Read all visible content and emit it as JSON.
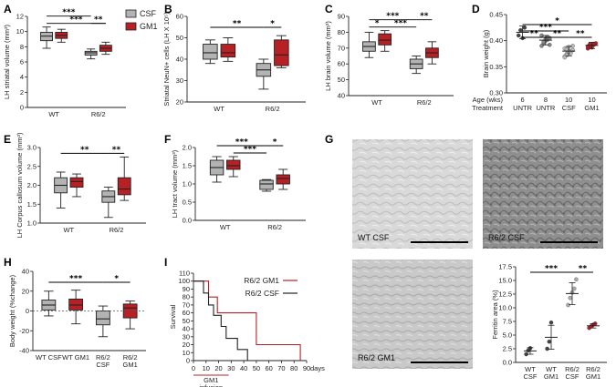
{
  "colors": {
    "csf": "#b3b3b3",
    "gm1": "#b72025",
    "axis": "#222222"
  },
  "legend": {
    "items": [
      {
        "label": "CSF",
        "color": "#b3b3b3"
      },
      {
        "label": "GM1",
        "color": "#b72025"
      }
    ]
  },
  "chart_data": [
    {
      "panel": "A",
      "type": "box",
      "ylabel": "LH striatal volume (mm³)",
      "ylim": [
        0,
        12
      ],
      "yticks": [
        0,
        2,
        4,
        6,
        8,
        10,
        12
      ],
      "groups": [
        "WT",
        "R6/2"
      ],
      "boxes": [
        {
          "group": 0,
          "series": "CSF",
          "min": 7.8,
          "q1": 8.8,
          "median": 9.4,
          "q3": 9.9,
          "max": 10.6
        },
        {
          "group": 0,
          "series": "GM1",
          "min": 8.6,
          "q1": 9.1,
          "median": 9.5,
          "q3": 9.9,
          "max": 10.3
        },
        {
          "group": 1,
          "series": "CSF",
          "min": 6.4,
          "q1": 6.9,
          "median": 7.2,
          "q3": 7.4,
          "max": 7.7
        },
        {
          "group": 1,
          "series": "GM1",
          "min": 7.0,
          "q1": 7.4,
          "median": 7.8,
          "q3": 8.2,
          "max": 8.6
        }
      ],
      "significance": [
        {
          "from": 0,
          "to": 2,
          "label": "***",
          "level": 1
        },
        {
          "from": 0,
          "to": 3,
          "label": "***",
          "level": 0
        },
        {
          "from": 2,
          "to": 3,
          "label": "**",
          "level": 0
        }
      ]
    },
    {
      "panel": "B",
      "type": "box",
      "ylabel": "Striatal NeuN+ cells (LH X 10⁵)",
      "ylim": [
        20,
        60
      ],
      "yticks": [
        20,
        30,
        40,
        50,
        60
      ],
      "groups": [
        "WT",
        "R6/2"
      ],
      "boxes": [
        {
          "group": 0,
          "series": "CSF",
          "min": 38,
          "q1": 40,
          "median": 43,
          "q3": 47,
          "max": 49
        },
        {
          "group": 0,
          "series": "GM1",
          "min": 39,
          "q1": 41,
          "median": 43,
          "q3": 47,
          "max": 50
        },
        {
          "group": 1,
          "series": "CSF",
          "min": 26,
          "q1": 32,
          "median": 35,
          "q3": 38,
          "max": 40
        },
        {
          "group": 1,
          "series": "GM1",
          "min": 36,
          "q1": 37,
          "median": 42,
          "q3": 49,
          "max": 51
        }
      ],
      "significance": [
        {
          "from": 0,
          "to": 2,
          "label": "**",
          "level": 0
        },
        {
          "from": 2,
          "to": 3,
          "label": "*",
          "level": 0
        }
      ]
    },
    {
      "panel": "C",
      "type": "box",
      "ylabel": "LH brain volume (mm³)",
      "ylim": [
        40,
        90
      ],
      "yticks": [
        40,
        50,
        60,
        70,
        80,
        90
      ],
      "groups": [
        "WT",
        "R6/2"
      ],
      "boxes": [
        {
          "group": 0,
          "series": "CSF",
          "min": 64,
          "q1": 68,
          "median": 71,
          "q3": 74,
          "max": 80
        },
        {
          "group": 0,
          "series": "GM1",
          "min": 68,
          "q1": 72,
          "median": 75,
          "q3": 79,
          "max": 81
        },
        {
          "group": 1,
          "series": "CSF",
          "min": 54,
          "q1": 57,
          "median": 60,
          "q3": 63,
          "max": 65
        },
        {
          "group": 1,
          "series": "GM1",
          "min": 60,
          "q1": 64,
          "median": 67,
          "q3": 70,
          "max": 74
        }
      ],
      "significance": [
        {
          "from": 0,
          "to": 2,
          "label": "***",
          "level": 1
        },
        {
          "from": 2,
          "to": 3,
          "label": "**",
          "level": 1
        },
        {
          "from": 0,
          "to": 1,
          "label": "*",
          "level": 0
        },
        {
          "from": 1,
          "to": 2,
          "label": "***",
          "level": 0
        }
      ]
    },
    {
      "panel": "D",
      "type": "dot",
      "ylabel": "Brain weight (g)",
      "ylim": [
        0.3,
        0.45
      ],
      "yticks": [
        "0.30",
        "0.35",
        "0.40",
        "0.45"
      ],
      "row_labels": [
        "Age (wks)",
        "Treatment"
      ],
      "categories": [
        {
          "age": "6",
          "treatment": "UNTR",
          "color": "#444444",
          "mean": 0.416,
          "sd": 0.012,
          "points": [
            0.41,
            0.42,
            0.405,
            0.425
          ]
        },
        {
          "age": "8",
          "treatment": "UNTR",
          "color": "#888888",
          "mean": 0.401,
          "sd": 0.009,
          "points": [
            0.39,
            0.395,
            0.4,
            0.402,
            0.405,
            0.41,
            0.398,
            0.403,
            0.407,
            0.392
          ]
        },
        {
          "age": "10",
          "treatment": "CSF",
          "color": "#bbbbbb",
          "mean": 0.38,
          "sd": 0.009,
          "points": [
            0.37,
            0.375,
            0.378,
            0.38,
            0.382,
            0.385,
            0.372,
            0.388,
            0.376,
            0.39,
            0.368,
            0.383,
            0.379
          ]
        },
        {
          "age": "10",
          "treatment": "GM1",
          "color": "#b72025",
          "mean": 0.391,
          "sd": 0.006,
          "points": [
            0.385,
            0.388,
            0.39,
            0.392,
            0.395,
            0.389,
            0.393,
            0.387,
            0.394
          ]
        }
      ],
      "significance": [
        {
          "from": 0,
          "to": 2,
          "label": "***",
          "level": 1
        },
        {
          "from": 0,
          "to": 3,
          "label": "*",
          "level": 2
        },
        {
          "from": 0,
          "to": 1,
          "label": "**",
          "level": 0
        },
        {
          "from": 1,
          "to": 2,
          "label": "**",
          "level": 0
        },
        {
          "from": 2,
          "to": 3,
          "label": "**",
          "level": 0
        }
      ]
    },
    {
      "panel": "E",
      "type": "box",
      "ylabel": "LH Corpus callosum volume (mm³)",
      "ylim": [
        1.0,
        3.0
      ],
      "yticks": [
        "1.0",
        "1.5",
        "2.0",
        "2.5",
        "3.0"
      ],
      "groups": [
        "WT",
        "R6/2"
      ],
      "boxes": [
        {
          "group": 0,
          "series": "CSF",
          "min": 1.4,
          "q1": 1.8,
          "median": 2.0,
          "q3": 2.2,
          "max": 2.35
        },
        {
          "group": 0,
          "series": "GM1",
          "min": 1.7,
          "q1": 1.95,
          "median": 2.1,
          "q3": 2.2,
          "max": 2.3
        },
        {
          "group": 1,
          "series": "CSF",
          "min": 1.15,
          "q1": 1.55,
          "median": 1.7,
          "q3": 1.85,
          "max": 1.95
        },
        {
          "group": 1,
          "series": "GM1",
          "min": 1.6,
          "q1": 1.75,
          "median": 1.9,
          "q3": 2.2,
          "max": 2.75
        }
      ],
      "significance": [
        {
          "from": 0,
          "to": 2,
          "label": "**",
          "level": 0
        },
        {
          "from": 2,
          "to": 3,
          "label": "**",
          "level": 0
        }
      ]
    },
    {
      "panel": "F",
      "type": "box",
      "ylabel": "LH tract volume (mm³)",
      "ylim": [
        0.0,
        2.0
      ],
      "yticks": [
        "0.0",
        "0.5",
        "1.0",
        "1.5",
        "2.0"
      ],
      "groups": [
        "WT",
        "R6/2"
      ],
      "boxes": [
        {
          "group": 0,
          "series": "CSF",
          "min": 1.05,
          "q1": 1.25,
          "median": 1.45,
          "q3": 1.65,
          "max": 1.75
        },
        {
          "group": 0,
          "series": "GM1",
          "min": 1.2,
          "q1": 1.4,
          "median": 1.5,
          "q3": 1.65,
          "max": 1.75
        },
        {
          "group": 1,
          "series": "CSF",
          "min": 0.8,
          "q1": 0.85,
          "median": 1.0,
          "q3": 1.1,
          "max": 1.12
        },
        {
          "group": 1,
          "series": "GM1",
          "min": 0.85,
          "q1": 1.0,
          "median": 1.15,
          "q3": 1.25,
          "max": 1.4
        }
      ],
      "significance": [
        {
          "from": 0,
          "to": 2,
          "label": "***",
          "level": 1
        },
        {
          "from": 2,
          "to": 3,
          "label": "*",
          "level": 1
        },
        {
          "from": 1,
          "to": 2,
          "label": "***",
          "level": 0
        }
      ]
    },
    {
      "panel": "G",
      "type": "dot",
      "ylabel": "Ferritin area (%)",
      "ylim": [
        0.0,
        17.5
      ],
      "yticks": [
        "0.0",
        "2.5",
        "5.0",
        "7.5",
        "10.0",
        "12.5",
        "15.0",
        "17.5"
      ],
      "images": [
        {
          "label": "WT CSF"
        },
        {
          "label": "R6/2 CSF"
        },
        {
          "label": "R6/2 GM1"
        }
      ],
      "categories": [
        {
          "label": [
            "WT",
            "CSF"
          ],
          "color": "#444444",
          "mean": 2.1,
          "sd": 0.6,
          "points": [
            1.5,
            2.2,
            2.6
          ]
        },
        {
          "label": [
            "WT",
            "GM1"
          ],
          "color": "#444444",
          "mean": 4.6,
          "sd": 2.2,
          "points": [
            2.5,
            3.8,
            7.3
          ]
        },
        {
          "label": [
            "R6/2",
            "CSF"
          ],
          "color": "#aaaaaa",
          "mean": 12.6,
          "sd": 2.0,
          "points": [
            10.5,
            11.8,
            12.8,
            13.5,
            15.2
          ]
        },
        {
          "label": [
            "R6/2",
            "GM1"
          ],
          "color": "#b72025",
          "mean": 6.7,
          "sd": 0.4,
          "points": [
            6.3,
            6.6,
            6.9,
            7.1
          ]
        }
      ],
      "significance": [
        {
          "from": 0,
          "to": 2,
          "label": "***",
          "level": 0
        },
        {
          "from": 2,
          "to": 3,
          "label": "**",
          "level": 0
        }
      ]
    },
    {
      "panel": "H",
      "type": "box",
      "ylabel": "Body weight (%change)",
      "ylim": [
        -40,
        40
      ],
      "yticks": [
        "-40",
        "-20",
        "0",
        "20",
        "40"
      ],
      "categories": [
        [
          "WT CSF"
        ],
        [
          "WT GM1"
        ],
        [
          "R6/2",
          "CSF"
        ],
        [
          "R6/2",
          "GM1"
        ]
      ],
      "boxes": [
        {
          "group": 0,
          "series": "CSF",
          "min": -5,
          "q1": 1,
          "median": 6,
          "q3": 11,
          "max": 20
        },
        {
          "group": 1,
          "series": "GM1",
          "min": -13,
          "q1": 1,
          "median": 6,
          "q3": 12,
          "max": 21
        },
        {
          "group": 2,
          "series": "CSF",
          "min": -26,
          "q1": -14,
          "median": -8,
          "q3": 0,
          "max": 5
        },
        {
          "group": 3,
          "series": "GM1",
          "min": -18,
          "q1": -7,
          "median": 3,
          "q3": 7,
          "max": 10
        }
      ],
      "significance": [
        {
          "from": 0,
          "to": 2,
          "label": "***",
          "level": 0
        },
        {
          "from": 2,
          "to": 3,
          "label": "*",
          "level": 0
        }
      ]
    },
    {
      "panel": "I",
      "type": "line",
      "ylabel": "Survival",
      "xlabel": "days",
      "xlim": [
        0,
        90
      ],
      "ylim": [
        0,
        110
      ],
      "xticks": [
        0,
        10,
        20,
        30,
        40,
        50,
        60,
        70,
        80,
        90
      ],
      "yticks": [
        0,
        10,
        20,
        30,
        40,
        50,
        60,
        70,
        80,
        90,
        100,
        110
      ],
      "annotation": [
        "GM1",
        "infusion"
      ],
      "annotation_range": [
        0,
        28
      ],
      "series": [
        {
          "name": "R6/2 GM1",
          "color": "#b72025",
          "steps": [
            [
              0,
              100
            ],
            [
              12,
              100
            ],
            [
              12,
              80
            ],
            [
              19,
              80
            ],
            [
              19,
              60
            ],
            [
              50,
              60
            ],
            [
              50,
              20
            ],
            [
              85,
              20
            ],
            [
              85,
              0
            ]
          ]
        },
        {
          "name": "R6/2 CSF",
          "color": "#222222",
          "steps": [
            [
              0,
              100
            ],
            [
              8,
              100
            ],
            [
              8,
              85
            ],
            [
              12,
              85
            ],
            [
              12,
              70
            ],
            [
              16,
              70
            ],
            [
              16,
              57
            ],
            [
              22,
              57
            ],
            [
              22,
              43
            ],
            [
              26,
              43
            ],
            [
              26,
              28
            ],
            [
              35,
              28
            ],
            [
              35,
              14
            ],
            [
              43,
              14
            ],
            [
              43,
              0
            ]
          ]
        }
      ]
    }
  ]
}
